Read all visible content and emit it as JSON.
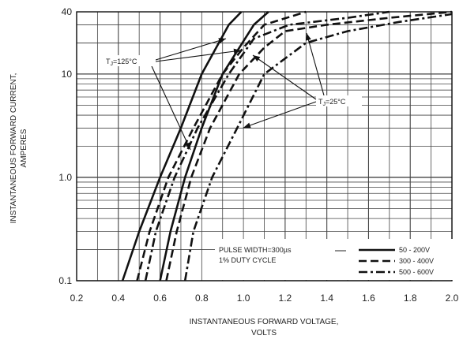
{
  "chart_data": {
    "type": "line",
    "xlabel_lines": [
      "INSTANTANEOUS FORWARD VOLTAGE,",
      "VOLTS"
    ],
    "ylabel_lines": [
      "INSTANTANEOUS FORWARD CURRENT,",
      "AMPERES"
    ],
    "x_scale": "linear",
    "y_scale": "log",
    "xlim": [
      0.2,
      2.0
    ],
    "ylim": [
      0.1,
      40
    ],
    "x_ticks": [
      0.2,
      0.4,
      0.6,
      0.8,
      1.0,
      1.2,
      1.4,
      1.6,
      1.8,
      2.0
    ],
    "x_tick_labels": [
      "0.2",
      "0.4",
      "0.6",
      "0.8",
      "1.0",
      "1.2",
      "1.4",
      "1.6",
      "1.8",
      "2.0"
    ],
    "y_ticks": [
      0.1,
      1.0,
      10,
      40
    ],
    "y_tick_labels": [
      "0.1",
      "1.0",
      "10",
      "40"
    ],
    "grid": true,
    "legend_position": "bottom-right",
    "legend": {
      "note_lines": [
        "PULSE WIDTH=300µs",
        "1% DUTY CYCLE"
      ],
      "entries": [
        {
          "label": "50 - 200V",
          "style": "solid"
        },
        {
          "label": "300 - 400V",
          "style": "dashed"
        },
        {
          "label": "500 - 600V",
          "style": "dashdot"
        }
      ]
    },
    "annotations": [
      {
        "text": "T<sub>J</sub>=125°C",
        "plain": "TJ=125°C",
        "temperature": "125C"
      },
      {
        "text": "T<sub>J</sub>=25°C",
        "plain": "TJ=25°C",
        "temperature": "25C"
      }
    ],
    "series": [
      {
        "style": "solid",
        "temperature": "125C",
        "points": [
          [
            0.42,
            0.1
          ],
          [
            0.5,
            0.3
          ],
          [
            0.6,
            1.0
          ],
          [
            0.7,
            3.0
          ],
          [
            0.8,
            10
          ],
          [
            0.93,
            30
          ],
          [
            0.99,
            40
          ]
        ]
      },
      {
        "style": "solid",
        "temperature": "25C",
        "points": [
          [
            0.6,
            0.1
          ],
          [
            0.65,
            0.3
          ],
          [
            0.72,
            1.0
          ],
          [
            0.8,
            3.0
          ],
          [
            0.9,
            10
          ],
          [
            1.05,
            30
          ],
          [
            1.12,
            40
          ]
        ]
      },
      {
        "style": "dashed",
        "temperature": "125C",
        "points": [
          [
            0.49,
            0.1
          ],
          [
            0.55,
            0.3
          ],
          [
            0.64,
            1.0
          ],
          [
            0.76,
            3.0
          ],
          [
            0.9,
            10
          ],
          [
            1.0,
            18
          ],
          [
            1.1,
            30
          ],
          [
            1.3,
            40
          ]
        ]
      },
      {
        "style": "dashed",
        "temperature": "25C",
        "points": [
          [
            0.63,
            0.1
          ],
          [
            0.68,
            0.3
          ],
          [
            0.75,
            1.0
          ],
          [
            0.84,
            3.0
          ],
          [
            0.98,
            10
          ],
          [
            1.1,
            18
          ],
          [
            1.2,
            26
          ],
          [
            1.4,
            30
          ],
          [
            1.7,
            35
          ],
          [
            2.0,
            40
          ]
        ]
      },
      {
        "style": "dashdot",
        "temperature": "125C",
        "points": [
          [
            0.53,
            0.1
          ],
          [
            0.58,
            0.3
          ],
          [
            0.67,
            1.0
          ],
          [
            0.78,
            3.0
          ],
          [
            0.93,
            10
          ],
          [
            1.05,
            22
          ],
          [
            1.22,
            30
          ],
          [
            1.5,
            35
          ],
          [
            1.7,
            40
          ]
        ]
      },
      {
        "style": "dashdot",
        "temperature": "25C",
        "points": [
          [
            0.72,
            0.1
          ],
          [
            0.76,
            0.3
          ],
          [
            0.85,
            1.0
          ],
          [
            0.97,
            3.0
          ],
          [
            1.1,
            10
          ],
          [
            1.3,
            20
          ],
          [
            1.5,
            26
          ],
          [
            1.75,
            32
          ],
          [
            2.0,
            38
          ]
        ]
      }
    ]
  }
}
